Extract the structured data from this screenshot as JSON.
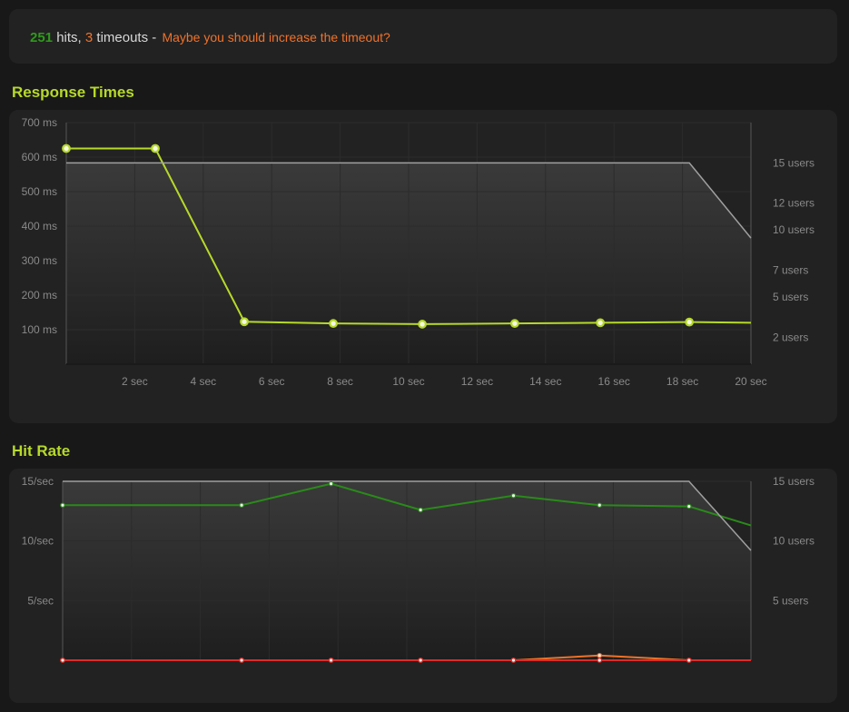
{
  "summary": {
    "hits": "251",
    "hits_label": "hits,",
    "timeouts": "3",
    "timeouts_label": "timeouts -",
    "advice": "Maybe you should increase the timeout?"
  },
  "colors": {
    "panel": "#222222",
    "plot_top": "#3a3a3a",
    "plot_bottom": "#1e1e1e",
    "response_line": "#b6d92a",
    "users_line": "#a0a0a0",
    "hits_line": "#2a8a1a",
    "timeouts_line": "#f0722a",
    "errors_line": "#e02a2a",
    "title": "#b6d92a"
  },
  "chart_data": [
    {
      "type": "line",
      "title": "Response Times",
      "x_ticks": [
        "2 sec",
        "4 sec",
        "6 sec",
        "8 sec",
        "10 sec",
        "12 sec",
        "14 sec",
        "16 sec",
        "18 sec",
        "20 sec"
      ],
      "y_ticks": [
        "700 ms",
        "600 ms",
        "500 ms",
        "400 ms",
        "300 ms",
        "200 ms",
        "100 ms"
      ],
      "y2_ticks": [
        "15 users",
        "12 users",
        "10 users",
        "7 users",
        "5 users",
        "2 users"
      ],
      "xlim": [
        0,
        20
      ],
      "ylim": [
        0,
        700
      ],
      "y2lim": [
        0,
        18
      ],
      "series": [
        {
          "axis": "left",
          "color": "#b6d92a",
          "markers": true,
          "x": [
            0,
            2.6,
            5.2,
            7.8,
            10.4,
            13.1,
            15.6,
            18.2,
            20
          ],
          "values": [
            625,
            625,
            123,
            118,
            116,
            118,
            120,
            122,
            120
          ]
        },
        {
          "axis": "right",
          "color": "#a0a0a0",
          "markers": false,
          "x": [
            0,
            18.2,
            20
          ],
          "values": [
            15,
            15,
            9.4
          ]
        }
      ]
    },
    {
      "type": "line",
      "title": "Hit Rate",
      "x_ticks": [],
      "y_ticks": [
        "15/sec",
        "10/sec",
        "5/sec"
      ],
      "y2_ticks": [
        "15 users",
        "10 users",
        "5 users"
      ],
      "xlim": [
        0,
        20
      ],
      "ylim": [
        0,
        15
      ],
      "y2lim": [
        0,
        15
      ],
      "series": [
        {
          "axis": "left",
          "color": "#2a8a1a",
          "markers": true,
          "x": [
            0,
            5.2,
            7.8,
            10.4,
            13.1,
            15.6,
            18.2,
            20
          ],
          "values": [
            13,
            13,
            14.8,
            12.6,
            13.8,
            13,
            12.9,
            11.3
          ]
        },
        {
          "axis": "left",
          "color": "#f0722a",
          "markers": true,
          "x": [
            0,
            5.2,
            7.8,
            10.4,
            13.1,
            15.6,
            18.2,
            20
          ],
          "values": [
            0,
            0,
            0,
            0,
            0,
            0.4,
            0,
            0
          ]
        },
        {
          "axis": "left",
          "color": "#e02a2a",
          "markers": true,
          "x": [
            0,
            5.2,
            7.8,
            10.4,
            13.1,
            15.6,
            18.2,
            20
          ],
          "values": [
            0,
            0,
            0,
            0,
            0,
            0,
            0,
            0
          ]
        },
        {
          "axis": "right",
          "color": "#a0a0a0",
          "markers": false,
          "x": [
            0,
            18.2,
            20
          ],
          "values": [
            15,
            15,
            9.2
          ]
        }
      ]
    }
  ]
}
